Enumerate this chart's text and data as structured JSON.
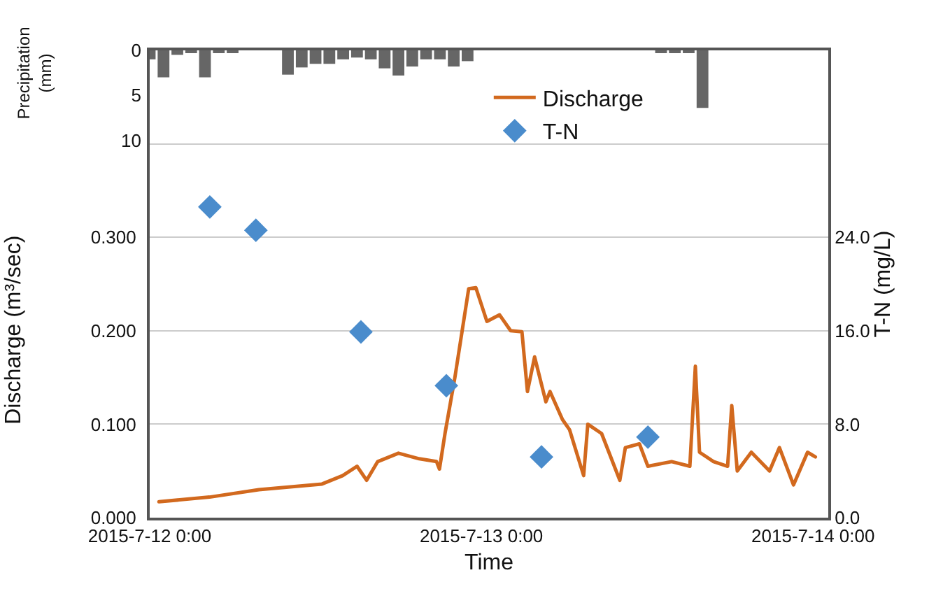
{
  "chart_data": {
    "type": "line",
    "xlabel": "Time",
    "ylabel": "Discharge (m³/sec)",
    "y2label": "T-N (mg/L)",
    "y3label": "Precipitation (mm)",
    "xlim": [
      "2015-07-12T00:00",
      "2015-07-14T01:06"
    ],
    "xticks": [
      {
        "value": "2015-07-12T00:00",
        "label": "2015-7-12 0:00"
      },
      {
        "value": "2015-07-13T00:00",
        "label": "2015-7-13 0:00"
      },
      {
        "value": "2015-07-14T00:00",
        "label": "2015-7-14 0:00"
      }
    ],
    "ylim": [
      0,
      0.5
    ],
    "yticks": [
      {
        "value": 0,
        "label": "0.000"
      },
      {
        "value": 0.1,
        "label": "0.100"
      },
      {
        "value": 0.2,
        "label": "0.200"
      },
      {
        "value": 0.3,
        "label": "0.300"
      },
      {
        "value": 0.4,
        "label": null
      }
    ],
    "y2lim": [
      0,
      40
    ],
    "y2ticks": [
      {
        "value": 0,
        "label": "0.0"
      },
      {
        "value": 8,
        "label": "8.0"
      },
      {
        "value": 16,
        "label": "16.0"
      },
      {
        "value": 24,
        "label": "24.0"
      }
    ],
    "y3lim": [
      52,
      0
    ],
    "y3ticks": [
      0,
      5,
      10
    ],
    "grid": "y",
    "legend": "top right",
    "series": [
      {
        "name": "Discharge",
        "color": "#d2691e",
        "marker": "none",
        "line_style": "solid",
        "x": [
          "2015-07-12T00:40",
          "2015-07-12T04:20",
          "2015-07-12T07:54",
          "2015-07-12T12:28",
          "2015-07-12T13:58",
          "2015-07-12T15:00",
          "2015-07-12T15:42",
          "2015-07-12T16:30",
          "2015-07-12T18:00",
          "2015-07-12T19:30",
          "2015-07-12T20:45",
          "2015-07-12T20:58",
          "2015-07-12T21:22",
          "2015-07-12T22:05",
          "2015-07-12T23:05",
          "2015-07-12T23:36",
          "2015-07-13T00:24",
          "2015-07-13T01:19",
          "2015-07-13T02:07",
          "2015-07-13T02:56",
          "2015-07-13T03:20",
          "2015-07-13T03:51",
          "2015-07-13T04:40",
          "2015-07-13T04:58",
          "2015-07-13T05:52",
          "2015-07-13T06:23",
          "2015-07-13T07:24",
          "2015-07-13T07:42",
          "2015-07-13T08:42",
          "2015-07-13T10:01",
          "2015-07-13T10:25",
          "2015-07-13T11:26",
          "2015-07-13T12:03",
          "2015-07-13T13:46",
          "2015-07-13T15:05",
          "2015-07-13T15:29",
          "2015-07-13T15:47",
          "2015-07-13T16:48",
          "2015-07-13T17:49",
          "2015-07-13T18:07",
          "2015-07-13T18:31",
          "2015-07-13T19:32",
          "2015-07-13T20:51",
          "2015-07-13T21:34",
          "2015-07-13T22:35",
          "2015-07-13T23:36",
          "2015-07-14T00:10"
        ],
        "values": [
          0.017,
          0.022,
          0.03,
          0.036,
          0.045,
          0.055,
          0.04,
          0.06,
          0.069,
          0.063,
          0.06,
          0.052,
          0.09,
          0.15,
          0.245,
          0.246,
          0.21,
          0.217,
          0.2,
          0.199,
          0.135,
          0.172,
          0.124,
          0.135,
          0.105,
          0.094,
          0.045,
          0.1,
          0.09,
          0.04,
          0.075,
          0.079,
          0.055,
          0.06,
          0.055,
          0.162,
          0.07,
          0.06,
          0.055,
          0.12,
          0.05,
          0.07,
          0.05,
          0.075,
          0.035,
          0.07,
          0.065
        ]
      },
      {
        "name": "T-N",
        "type": "scatter",
        "axis": "y2",
        "color": "#4a8ccc",
        "marker": "diamond",
        "x": [
          "2015-07-12T04:21",
          "2015-07-12T07:41",
          "2015-07-12T15:17",
          "2015-07-12T21:28",
          "2015-07-13T04:21",
          "2015-07-13T12:03"
        ],
        "values": [
          26.6,
          24.6,
          15.9,
          11.3,
          5.2,
          6.9
        ]
      },
      {
        "type": "bar",
        "axis": "y3",
        "color": "#666666",
        "x": [
          "2015-07-12T00:00",
          "2015-07-12T01:00",
          "2015-07-12T02:00",
          "2015-07-12T03:00",
          "2015-07-12T04:00",
          "2015-07-12T05:00",
          "2015-07-12T06:00",
          "2015-07-12T10:00",
          "2015-07-12T11:00",
          "2015-07-12T12:00",
          "2015-07-12T13:00",
          "2015-07-12T14:00",
          "2015-07-12T15:00",
          "2015-07-12T16:00",
          "2015-07-12T17:00",
          "2015-07-12T18:00",
          "2015-07-12T19:00",
          "2015-07-12T20:00",
          "2015-07-12T21:00",
          "2015-07-12T22:00",
          "2015-07-12T23:00",
          "2015-07-13T13:00",
          "2015-07-13T14:00",
          "2015-07-13T15:00",
          "2015-07-13T16:00"
        ],
        "values": [
          1,
          3,
          0.5,
          0.3,
          3,
          0.3,
          0.2,
          2.7,
          1.9,
          1.5,
          1.5,
          1,
          0.8,
          1,
          2,
          2.8,
          1.8,
          1,
          1,
          1.8,
          1.2,
          0.3,
          0.3,
          0.3,
          6.4
        ]
      }
    ]
  }
}
